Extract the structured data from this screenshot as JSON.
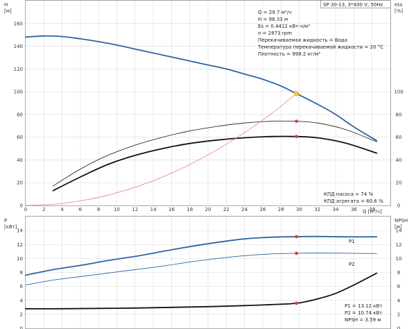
{
  "title_box": "SP 30-13, 3*400 V, 50Hz",
  "top_panel": {
    "y_left_label": "H",
    "y_left_unit": "[м]",
    "y_right_label": "eta",
    "y_right_unit": "[%]",
    "x_label": "Q [м³/ч]",
    "info_lines": [
      "Q = 29.7 м³/ч",
      "H = 98.33 м",
      "Es = 0.4412 кВт·ч/м³",
      "n = 2873 rpm",
      "Перекачиваемая жидкость = Вода",
      "Температура перекачиваемой жидкости = 20 °C",
      "Плотность = 998.2 кг/м³"
    ],
    "eff_lines": [
      "КПД насоса = 74 %",
      "КПД агрегата = 60.6 %"
    ]
  },
  "bottom_panel": {
    "y_left_label": "P",
    "y_left_unit": "[кВт]",
    "y_right_label": "NPSH",
    "y_right_unit": "[м]",
    "p1_label": "P1",
    "p2_label": "P2",
    "info_lines": [
      "P1 = 13.12 кВт",
      "P2 = 10.74 кВт",
      "NPSH = 3.59 м"
    ]
  },
  "colors": {
    "head_curve": "#2a64a4",
    "efficiency_curves": "#111111",
    "system_curve": "#f07a7a",
    "duty_point_head": "#f5c542",
    "duty_point_marker": "#e53935",
    "power_curves": "#2a64a4",
    "npsh_curve": "#111111"
  },
  "chart_data": [
    {
      "type": "line",
      "name": "head-efficiency",
      "x_ticks": [
        0,
        2,
        4,
        6,
        8,
        10,
        12,
        14,
        16,
        18,
        20,
        22,
        24,
        26,
        28,
        30,
        32,
        34,
        36,
        38
      ],
      "xlim": [
        0,
        40
      ],
      "y_left_ticks": [
        0,
        20,
        40,
        60,
        80,
        100,
        120,
        140,
        160
      ],
      "ylim_left": [
        0,
        180
      ],
      "y_right_ticks": [
        0,
        20,
        40,
        60,
        80,
        100
      ],
      "ylim_right": [
        0,
        180
      ],
      "series": [
        {
          "role": "head",
          "axis": "left",
          "x": [
            0,
            2,
            4,
            6,
            8,
            10,
            12,
            14,
            16,
            18,
            20,
            22,
            24,
            26,
            28,
            29.7,
            32,
            34,
            36,
            38.5
          ],
          "y": [
            148,
            149,
            148.5,
            146.5,
            144,
            141,
            137.5,
            134,
            130.5,
            127,
            123.5,
            120,
            115.5,
            111,
            105,
            98.33,
            89,
            80,
            69,
            57
          ]
        },
        {
          "role": "pump-efficiency",
          "axis": "right",
          "x": [
            3,
            6,
            9,
            12,
            15,
            18,
            21,
            24,
            27,
            29.7,
            32,
            35,
            38.5
          ],
          "y": [
            17,
            32,
            44,
            53,
            60,
            65.5,
            69.5,
            72.5,
            74,
            74,
            72.5,
            67,
            56
          ]
        },
        {
          "role": "unit-efficiency",
          "axis": "right",
          "x": [
            3,
            6,
            9,
            12,
            15,
            18,
            21,
            24,
            27,
            29.7,
            32,
            35,
            38.5
          ],
          "y": [
            13,
            25,
            36,
            44,
            50,
            54.5,
            57.5,
            59.5,
            60.6,
            60.6,
            59.5,
            55,
            46
          ]
        },
        {
          "role": "system",
          "axis": "left",
          "x": [
            0,
            3,
            6,
            9,
            12,
            15,
            18,
            21,
            24,
            27,
            29.7
          ],
          "y": [
            0,
            1,
            4,
            9,
            16,
            25,
            36,
            49,
            64,
            81,
            98.33
          ]
        }
      ],
      "duty_point": {
        "x": 29.7,
        "head": 98.33,
        "pump_efficiency": 74,
        "unit_efficiency": 60.6
      }
    },
    {
      "type": "line",
      "name": "power-npsh",
      "x_ticks": [
        0,
        2,
        4,
        6,
        8,
        10,
        12,
        14,
        16,
        18,
        20,
        22,
        24,
        26,
        28,
        30,
        32,
        34,
        36,
        38
      ],
      "xlim": [
        0,
        40
      ],
      "y_left_ticks": [
        0,
        2,
        4,
        6,
        8,
        10,
        12,
        14
      ],
      "ylim_left": [
        0,
        16
      ],
      "y_right_ticks": [
        0,
        2,
        4,
        6,
        8,
        10,
        12,
        14
      ],
      "ylim_right": [
        0,
        16
      ],
      "series": [
        {
          "name": "P1",
          "axis": "left",
          "x": [
            0,
            3,
            6,
            9,
            12,
            15,
            18,
            21,
            24,
            27,
            29.7,
            32,
            35,
            38.5
          ],
          "y": [
            7.6,
            8.4,
            9.0,
            9.7,
            10.3,
            11.0,
            11.7,
            12.3,
            12.8,
            13.05,
            13.12,
            13.15,
            13.1,
            13.1
          ]
        },
        {
          "name": "P2",
          "axis": "left",
          "x": [
            0,
            3,
            6,
            9,
            12,
            15,
            18,
            21,
            24,
            27,
            29.7,
            32,
            35,
            38.5
          ],
          "y": [
            6.2,
            6.9,
            7.4,
            7.9,
            8.4,
            8.9,
            9.5,
            10.0,
            10.4,
            10.65,
            10.74,
            10.78,
            10.75,
            10.7
          ]
        },
        {
          "role": "npsh",
          "axis": "right",
          "x": [
            0,
            4,
            8,
            12,
            16,
            20,
            24,
            27,
            29.7,
            32,
            34,
            36,
            38.5
          ],
          "y": [
            2.8,
            2.8,
            2.85,
            2.9,
            3.0,
            3.1,
            3.25,
            3.4,
            3.59,
            4.2,
            5.0,
            6.2,
            7.9
          ]
        }
      ],
      "duty_point": {
        "x": 29.7,
        "P1": 13.12,
        "P2": 10.74,
        "npsh": 3.59
      }
    }
  ]
}
